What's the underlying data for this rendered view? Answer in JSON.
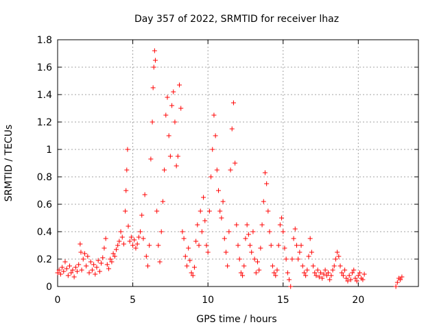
{
  "chart_data": {
    "type": "scatter",
    "title": "Day 357 of 2022, SRMTID for receiver lhaz",
    "xlabel": "GPS time / hours",
    "ylabel": "SRMTID / TECUs",
    "xlim": [
      0,
      24
    ],
    "ylim": [
      0,
      1.8
    ],
    "xticks": [
      0,
      5,
      10,
      15,
      20
    ],
    "xtick_labels": [
      "0",
      "5",
      "10",
      "15",
      "20"
    ],
    "yticks": [
      0,
      0.2,
      0.4,
      0.6,
      0.8,
      1.0,
      1.2,
      1.4,
      1.6,
      1.8
    ],
    "ytick_labels": [
      "0",
      "0.2",
      "0.4",
      "0.6",
      "0.8",
      "1",
      "1.2",
      "1.4",
      "1.6",
      "1.8"
    ],
    "grid": true,
    "marker": "plus",
    "color": "#ff0000",
    "series": [
      {
        "name": "SRMTID",
        "points": [
          [
            0.0,
            0.1
          ],
          [
            0.1,
            0.12
          ],
          [
            0.2,
            0.09
          ],
          [
            0.3,
            0.14
          ],
          [
            0.4,
            0.11
          ],
          [
            0.5,
            0.18
          ],
          [
            0.6,
            0.13
          ],
          [
            0.7,
            0.08
          ],
          [
            0.8,
            0.15
          ],
          [
            0.9,
            0.1
          ],
          [
            1.0,
            0.12
          ],
          [
            1.1,
            0.07
          ],
          [
            1.2,
            0.14
          ],
          [
            1.3,
            0.11
          ],
          [
            1.4,
            0.16
          ],
          [
            1.5,
            0.31
          ],
          [
            1.55,
            0.25
          ],
          [
            1.6,
            0.12
          ],
          [
            1.7,
            0.2
          ],
          [
            1.8,
            0.24
          ],
          [
            1.9,
            0.15
          ],
          [
            2.0,
            0.22
          ],
          [
            2.1,
            0.1
          ],
          [
            2.2,
            0.18
          ],
          [
            2.3,
            0.12
          ],
          [
            2.4,
            0.16
          ],
          [
            2.5,
            0.09
          ],
          [
            2.6,
            0.14
          ],
          [
            2.7,
            0.19
          ],
          [
            2.8,
            0.11
          ],
          [
            2.9,
            0.17
          ],
          [
            3.0,
            0.21
          ],
          [
            3.1,
            0.28
          ],
          [
            3.2,
            0.35
          ],
          [
            3.3,
            0.16
          ],
          [
            3.4,
            0.13
          ],
          [
            3.5,
            0.2
          ],
          [
            3.6,
            0.18
          ],
          [
            3.7,
            0.24
          ],
          [
            3.8,
            0.22
          ],
          [
            3.9,
            0.27
          ],
          [
            4.0,
            0.3
          ],
          [
            4.1,
            0.33
          ],
          [
            4.2,
            0.4
          ],
          [
            4.3,
            0.36
          ],
          [
            4.4,
            0.31
          ],
          [
            4.5,
            0.55
          ],
          [
            4.55,
            0.7
          ],
          [
            4.6,
            0.85
          ],
          [
            4.65,
            1.0
          ],
          [
            4.7,
            0.44
          ],
          [
            4.8,
            0.33
          ],
          [
            4.9,
            0.36
          ],
          [
            5.0,
            0.3
          ],
          [
            5.1,
            0.34
          ],
          [
            5.2,
            0.28
          ],
          [
            5.3,
            0.31
          ],
          [
            5.4,
            0.36
          ],
          [
            5.5,
            0.4
          ],
          [
            5.6,
            0.52
          ],
          [
            5.7,
            0.35
          ],
          [
            5.8,
            0.67
          ],
          [
            5.9,
            0.22
          ],
          [
            6.0,
            0.15
          ],
          [
            6.1,
            0.3
          ],
          [
            6.2,
            0.93
          ],
          [
            6.3,
            1.2
          ],
          [
            6.35,
            1.45
          ],
          [
            6.4,
            1.6
          ],
          [
            6.45,
            1.72
          ],
          [
            6.5,
            1.65
          ],
          [
            6.6,
            0.55
          ],
          [
            6.7,
            0.3
          ],
          [
            6.8,
            0.18
          ],
          [
            6.9,
            0.4
          ],
          [
            7.0,
            0.62
          ],
          [
            7.1,
            0.85
          ],
          [
            7.2,
            1.25
          ],
          [
            7.3,
            1.38
          ],
          [
            7.4,
            1.1
          ],
          [
            7.5,
            0.95
          ],
          [
            7.6,
            1.32
          ],
          [
            7.7,
            1.42
          ],
          [
            7.8,
            1.2
          ],
          [
            7.9,
            0.88
          ],
          [
            8.0,
            0.95
          ],
          [
            8.1,
            1.47
          ],
          [
            8.2,
            1.3
          ],
          [
            8.3,
            0.4
          ],
          [
            8.4,
            0.35
          ],
          [
            8.5,
            0.22
          ],
          [
            8.6,
            0.15
          ],
          [
            8.7,
            0.28
          ],
          [
            8.8,
            0.19
          ],
          [
            8.9,
            0.1
          ],
          [
            9.0,
            0.08
          ],
          [
            9.1,
            0.14
          ],
          [
            9.2,
            0.33
          ],
          [
            9.3,
            0.45
          ],
          [
            9.4,
            0.3
          ],
          [
            9.5,
            0.55
          ],
          [
            9.6,
            0.4
          ],
          [
            9.7,
            0.65
          ],
          [
            9.8,
            0.48
          ],
          [
            9.9,
            0.3
          ],
          [
            10.0,
            0.25
          ],
          [
            10.1,
            0.55
          ],
          [
            10.2,
            0.8
          ],
          [
            10.3,
            1.0
          ],
          [
            10.4,
            1.25
          ],
          [
            10.5,
            1.1
          ],
          [
            10.6,
            0.85
          ],
          [
            10.7,
            0.7
          ],
          [
            10.8,
            0.55
          ],
          [
            10.9,
            0.5
          ],
          [
            11.0,
            0.62
          ],
          [
            11.1,
            0.35
          ],
          [
            11.2,
            0.25
          ],
          [
            11.3,
            0.15
          ],
          [
            11.4,
            0.4
          ],
          [
            11.5,
            0.85
          ],
          [
            11.6,
            1.15
          ],
          [
            11.7,
            1.34
          ],
          [
            11.8,
            0.9
          ],
          [
            11.9,
            0.45
          ],
          [
            12.0,
            0.3
          ],
          [
            12.1,
            0.2
          ],
          [
            12.2,
            0.1
          ],
          [
            12.3,
            0.08
          ],
          [
            12.4,
            0.15
          ],
          [
            12.5,
            0.35
          ],
          [
            12.6,
            0.45
          ],
          [
            12.7,
            0.38
          ],
          [
            12.8,
            0.3
          ],
          [
            12.9,
            0.25
          ],
          [
            13.0,
            0.4
          ],
          [
            13.1,
            0.2
          ],
          [
            13.2,
            0.1
          ],
          [
            13.3,
            0.18
          ],
          [
            13.4,
            0.12
          ],
          [
            13.5,
            0.28
          ],
          [
            13.6,
            0.45
          ],
          [
            13.7,
            0.62
          ],
          [
            13.8,
            0.83
          ],
          [
            13.9,
            0.75
          ],
          [
            14.0,
            0.55
          ],
          [
            14.1,
            0.4
          ],
          [
            14.2,
            0.3
          ],
          [
            14.3,
            0.15
          ],
          [
            14.4,
            0.1
          ],
          [
            14.5,
            0.08
          ],
          [
            14.6,
            0.12
          ],
          [
            14.7,
            0.3
          ],
          [
            14.8,
            0.45
          ],
          [
            14.9,
            0.5
          ],
          [
            15.0,
            0.4
          ],
          [
            15.1,
            0.28
          ],
          [
            15.2,
            0.2
          ],
          [
            15.3,
            0.1
          ],
          [
            15.4,
            0.05
          ],
          [
            15.5,
            0.0
          ],
          [
            15.6,
            0.2
          ],
          [
            15.7,
            0.35
          ],
          [
            15.8,
            0.42
          ],
          [
            15.9,
            0.3
          ],
          [
            16.0,
            0.2
          ],
          [
            16.1,
            0.25
          ],
          [
            16.2,
            0.3
          ],
          [
            16.3,
            0.15
          ],
          [
            16.4,
            0.1
          ],
          [
            16.5,
            0.08
          ],
          [
            16.6,
            0.12
          ],
          [
            16.7,
            0.22
          ],
          [
            16.8,
            0.35
          ],
          [
            16.9,
            0.25
          ],
          [
            17.0,
            0.15
          ],
          [
            17.1,
            0.1
          ],
          [
            17.2,
            0.08
          ],
          [
            17.3,
            0.12
          ],
          [
            17.4,
            0.07
          ],
          [
            17.5,
            0.1
          ],
          [
            17.6,
            0.06
          ],
          [
            17.7,
            0.09
          ],
          [
            17.8,
            0.12
          ],
          [
            17.9,
            0.08
          ],
          [
            18.0,
            0.1
          ],
          [
            18.1,
            0.05
          ],
          [
            18.2,
            0.08
          ],
          [
            18.3,
            0.12
          ],
          [
            18.4,
            0.15
          ],
          [
            18.5,
            0.2
          ],
          [
            18.6,
            0.25
          ],
          [
            18.7,
            0.22
          ],
          [
            18.8,
            0.15
          ],
          [
            18.9,
            0.1
          ],
          [
            19.0,
            0.08
          ],
          [
            19.1,
            0.12
          ],
          [
            19.2,
            0.06
          ],
          [
            19.3,
            0.04
          ],
          [
            19.4,
            0.08
          ],
          [
            19.5,
            0.05
          ],
          [
            19.6,
            0.1
          ],
          [
            19.7,
            0.12
          ],
          [
            19.8,
            0.06
          ],
          [
            19.9,
            0.04
          ],
          [
            20.0,
            0.08
          ],
          [
            20.1,
            0.1
          ],
          [
            20.2,
            0.06
          ],
          [
            20.3,
            0.05
          ],
          [
            20.4,
            0.09
          ],
          [
            22.5,
            0.0
          ],
          [
            22.6,
            0.03
          ],
          [
            22.7,
            0.06
          ],
          [
            22.8,
            0.05
          ],
          [
            22.9,
            0.07
          ]
        ]
      }
    ]
  }
}
